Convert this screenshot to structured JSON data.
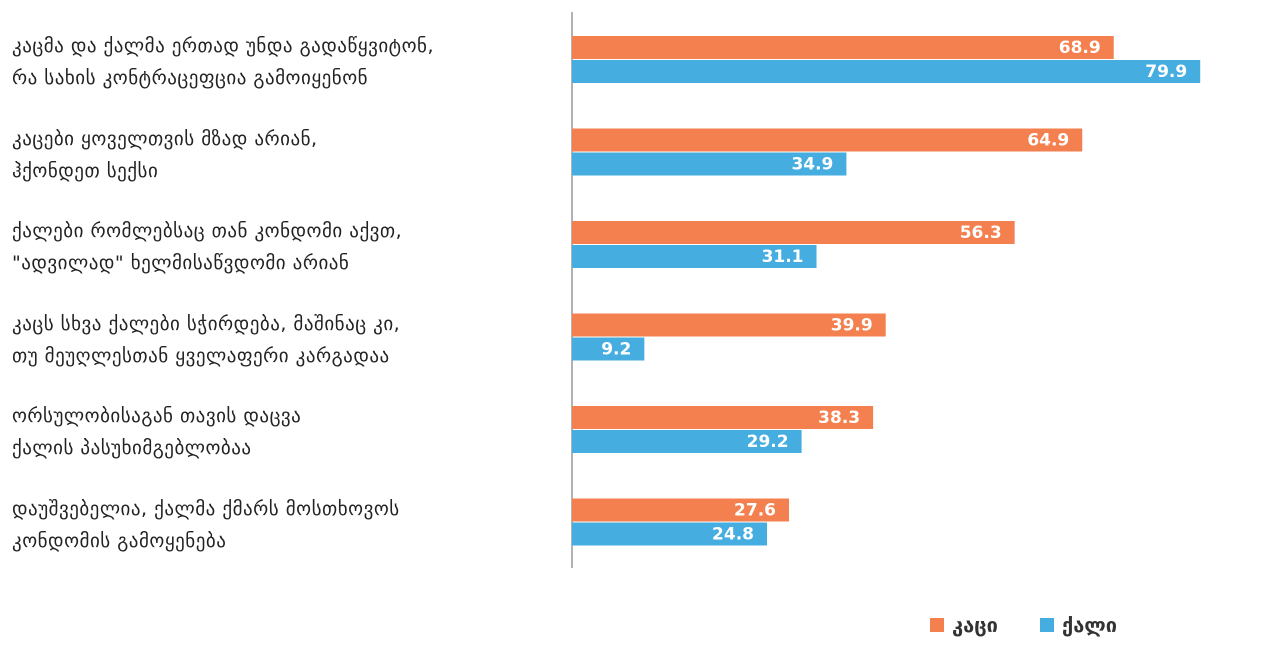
{
  "chart_data": {
    "type": "bar",
    "orientation": "horizontal",
    "categories": [
      "კაცმა და ქალმა ერთად უნდა გადაწყვიტონ,\nრა სახის კონტრაცეფცია გამოიყენონ",
      "კაცები ყოველთვის მზად არიან,\nჰქონდეთ სექსი",
      "ქალები რომლებსაც თან კონდომი აქვთ,\n\"ადვილად\" ხელმისაწვდომი არიან",
      "კაცს სხვა ქალები სჭირდება, მაშინაც კი,\nთუ მეუღლესთან ყველაფერი კარგადაა",
      "ორსულობისაგან თავის დაცვა\nქალის პასუხიმგებლობაა",
      "დაუშვებელია,  ქალმა ქმარს მოსთხოვოს\nკონდომის გამოყენება"
    ],
    "series": [
      {
        "name": "კაცი",
        "color": "#f4804f",
        "values": [
          68.9,
          64.9,
          56.3,
          39.9,
          38.3,
          27.6
        ]
      },
      {
        "name": "ქალი",
        "color": "#45addf",
        "values": [
          79.9,
          34.9,
          31.1,
          9.2,
          29.2,
          24.8
        ]
      }
    ],
    "xlim": [
      0,
      80
    ],
    "legend": "bottom-right"
  }
}
